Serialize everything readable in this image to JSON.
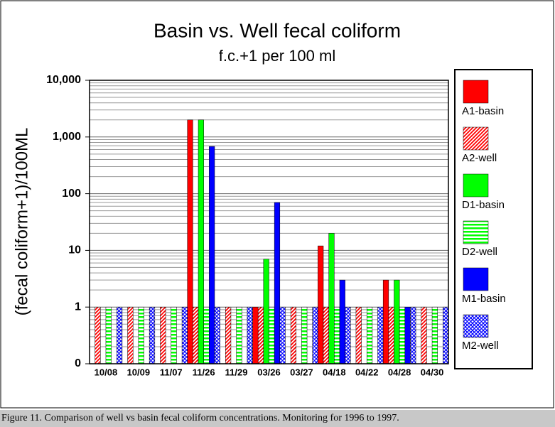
{
  "chart_data": {
    "type": "bar",
    "title": "Basin vs. Well fecal coliform",
    "subtitle": "f.c.+1 per 100 ml",
    "y_label": "(fecal coliform+1)/100ML",
    "log_scale": true,
    "grid": true,
    "minor_grid": true,
    "legend": "right",
    "categories": [
      "10/08",
      "10/09",
      "11/07",
      "11/26",
      "11/29",
      "03/26",
      "03/27",
      "04/18",
      "04/22",
      "04/28",
      "04/30"
    ],
    "series": [
      {
        "name": "A1-basin",
        "color": "#ff0000",
        "pattern": "solid",
        "values": [
          null,
          null,
          null,
          2000,
          null,
          1,
          null,
          12,
          null,
          3,
          null
        ]
      },
      {
        "name": "A2-well",
        "color": "#ff0000",
        "pattern": "diagonal",
        "values": [
          1,
          1,
          1,
          1,
          1,
          1,
          1,
          1,
          1,
          1,
          1
        ]
      },
      {
        "name": "D1-basin",
        "color": "#00ff00",
        "pattern": "solid",
        "values": [
          null,
          null,
          null,
          2000,
          null,
          7,
          null,
          20,
          null,
          3,
          null
        ]
      },
      {
        "name": "D2-well",
        "color": "#00ff00",
        "pattern": "horizontal",
        "values": [
          1,
          1,
          1,
          1,
          1,
          1,
          1,
          1,
          1,
          1,
          1
        ]
      },
      {
        "name": "M1-basin",
        "color": "#0000ff",
        "pattern": "solid",
        "values": [
          null,
          null,
          null,
          680,
          null,
          70,
          null,
          3,
          null,
          1,
          null
        ]
      },
      {
        "name": "M2-well",
        "color": "#0000ff",
        "pattern": "crosshatch",
        "values": [
          1,
          1,
          1,
          1,
          1,
          1,
          1,
          1,
          1,
          1,
          1
        ]
      }
    ],
    "ylim": [
      0.1,
      10000
    ],
    "yticks": [
      {
        "value": 0.1,
        "label": "0"
      },
      1,
      10,
      100,
      {
        "value": 1000,
        "label": "1,000"
      },
      {
        "value": 10000,
        "label": "10,000"
      }
    ]
  },
  "caption": "Figure 11. Comparison of well vs basin fecal coliform concentrations. Monitoring for 1996 to 1997."
}
